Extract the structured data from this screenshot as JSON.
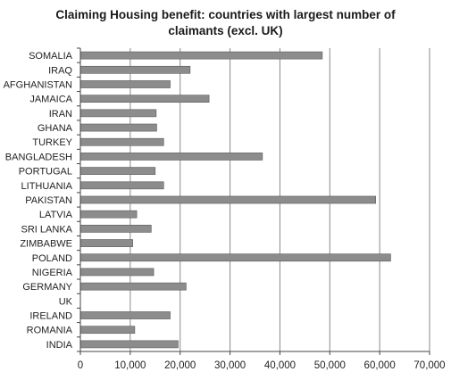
{
  "chart_data": {
    "type": "bar",
    "orientation": "horizontal",
    "title_lines": [
      "Claiming Housing benefit: countries with largest number of",
      "claimants (excl. UK)"
    ],
    "categories": [
      "SOMALIA",
      "IRAQ",
      "AFGHANISTAN",
      "JAMAICA",
      "IRAN",
      "GHANA",
      "TURKEY",
      "BANGLADESH",
      "PORTUGAL",
      "LITHUANIA",
      "PAKISTAN",
      "LATVIA",
      "SRI LANKA",
      "ZIMBABWE",
      "POLAND",
      "NIGERIA",
      "GERMANY",
      "UK",
      "IRELAND",
      "ROMANIA",
      "INDIA"
    ],
    "values": [
      48500,
      22000,
      18000,
      25800,
      15200,
      15300,
      16700,
      36500,
      15000,
      16700,
      59200,
      11300,
      14200,
      10500,
      62200,
      14700,
      21200,
      null,
      18000,
      10900,
      19600
    ],
    "x_ticks": [
      "0",
      "10,000",
      "20,000",
      "30,000",
      "40,000",
      "50,000",
      "60,000",
      "70,000"
    ],
    "xlim": [
      0,
      70000
    ],
    "grid": "vertical",
    "legend": "none",
    "colors": {
      "bar_fill": "#8c8c8c",
      "bar_stroke": "#5a5a5a",
      "grid": "#8a8a8a",
      "axis": "#444444",
      "text": "#222222"
    }
  }
}
